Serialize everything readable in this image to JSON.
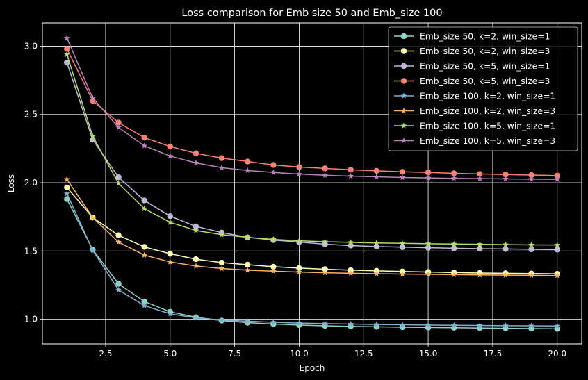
{
  "chart_data": {
    "type": "line",
    "title": "Loss comparison for Emb size 50 and Emb_size 100",
    "xlabel": "Epoch",
    "ylabel": "Loss",
    "xlim": [
      0.05,
      20.95
    ],
    "ylim": [
      0.82,
      3.17
    ],
    "xticks": [
      2.5,
      5.0,
      7.5,
      10.0,
      12.5,
      15.0,
      17.5,
      20.0
    ],
    "yticks": [
      1.0,
      1.5,
      2.0,
      2.5,
      3.0
    ],
    "xtick_labels": [
      "2.5",
      "5.0",
      "7.5",
      "10.0",
      "12.5",
      "15.0",
      "17.5",
      "20.0"
    ],
    "ytick_labels": [
      "1.0",
      "1.5",
      "2.0",
      "2.5",
      "3.0"
    ],
    "grid": true,
    "legend_position": "top-right",
    "background": "#000000",
    "x": [
      1,
      2,
      3,
      4,
      5,
      6,
      7,
      8,
      9,
      10,
      11,
      12,
      13,
      14,
      15,
      16,
      17,
      18,
      19,
      20
    ],
    "series": [
      {
        "name": "Emb_size 50, k=2, win_size=1",
        "color": "#8dd3c7",
        "marker": "circle",
        "values": [
          1.88,
          1.51,
          1.26,
          1.13,
          1.055,
          1.015,
          0.99,
          0.975,
          0.965,
          0.958,
          0.952,
          0.948,
          0.945,
          0.942,
          0.94,
          0.938,
          0.936,
          0.934,
          0.932,
          0.93
        ]
      },
      {
        "name": "Emb_size 50, k=2, win_size=3",
        "color": "#feffb3",
        "marker": "circle",
        "values": [
          1.965,
          1.745,
          1.615,
          1.53,
          1.48,
          1.44,
          1.415,
          1.4,
          1.385,
          1.375,
          1.367,
          1.36,
          1.355,
          1.35,
          1.346,
          1.342,
          1.339,
          1.337,
          1.335,
          1.333
        ]
      },
      {
        "name": "Emb_size 50, k=5, win_size=1",
        "color": "#bfbbd9",
        "marker": "circle",
        "values": [
          2.88,
          2.315,
          2.04,
          1.87,
          1.755,
          1.68,
          1.635,
          1.6,
          1.58,
          1.565,
          1.55,
          1.54,
          1.533,
          1.528,
          1.524,
          1.52,
          1.517,
          1.515,
          1.512,
          1.51
        ]
      },
      {
        "name": "Emb_size 50, k=5, win_size=3",
        "color": "#fa8174",
        "marker": "circle",
        "values": [
          2.98,
          2.6,
          2.44,
          2.33,
          2.265,
          2.215,
          2.18,
          2.155,
          2.13,
          2.115,
          2.105,
          2.095,
          2.087,
          2.08,
          2.075,
          2.069,
          2.064,
          2.06,
          2.056,
          2.052
        ]
      },
      {
        "name": "Emb_size 100, k=2, win_size=1",
        "color": "#81b1d2",
        "marker": "star",
        "values": [
          1.92,
          1.505,
          1.215,
          1.1,
          1.04,
          1.01,
          0.995,
          0.985,
          0.978,
          0.972,
          0.968,
          0.965,
          0.962,
          0.96,
          0.958,
          0.956,
          0.955,
          0.953,
          0.952,
          0.951
        ]
      },
      {
        "name": "Emb_size 100, k=2, win_size=3",
        "color": "#fdb462",
        "marker": "star",
        "values": [
          2.025,
          1.745,
          1.565,
          1.47,
          1.42,
          1.39,
          1.372,
          1.36,
          1.352,
          1.346,
          1.341,
          1.337,
          1.334,
          1.331,
          1.329,
          1.327,
          1.325,
          1.323,
          1.322,
          1.32
        ]
      },
      {
        "name": "Emb_size 100, k=5, win_size=1",
        "color": "#b3de69",
        "marker": "star",
        "values": [
          2.94,
          2.34,
          1.995,
          1.81,
          1.71,
          1.65,
          1.62,
          1.6,
          1.585,
          1.575,
          1.568,
          1.563,
          1.559,
          1.556,
          1.553,
          1.551,
          1.549,
          1.547,
          1.545,
          1.544
        ]
      },
      {
        "name": "Emb_size 100, k=5, win_size=3",
        "color": "#bc82bd",
        "marker": "star",
        "values": [
          3.06,
          2.62,
          2.405,
          2.27,
          2.195,
          2.145,
          2.11,
          2.09,
          2.075,
          2.063,
          2.055,
          2.048,
          2.043,
          2.038,
          2.035,
          2.032,
          2.03,
          2.028,
          2.026,
          2.025
        ]
      }
    ]
  }
}
